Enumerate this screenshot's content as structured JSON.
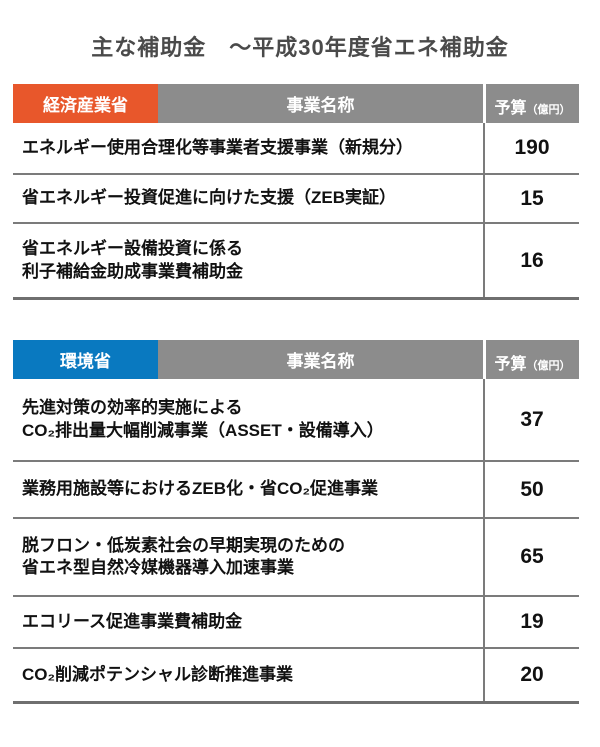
{
  "title": "主な補助金　〜平成30年度省エネ補助金",
  "colors": {
    "meti_badge_orange": "#E8572B",
    "env_badge_blue": "#0979C0",
    "header_gray": "#8C8C8C",
    "separator_gray": "#7B7B7B",
    "title_gray": "#4A4A4A"
  },
  "tables": [
    {
      "ministry": "経済産業省",
      "name_header": "事業名称",
      "budget_header": "予算",
      "budget_unit": "（億円）",
      "rows": [
        {
          "name": "エネルギー使用合理化等事業者支援事業（新規分）",
          "budget": "190"
        },
        {
          "name": "省エネルギー投資促進に向けた支援（ZEB実証）",
          "budget": "15"
        },
        {
          "name": "省エネルギー設備投資に係る\n利子補給金助成事業費補助金",
          "budget": "16"
        }
      ]
    },
    {
      "ministry": "環境省",
      "name_header": "事業名称",
      "budget_header": "予算",
      "budget_unit": "（億円）",
      "rows": [
        {
          "name": "先進対策の効率的実施による\nCO₂排出量大幅削減事業（ASSET・設備導入）",
          "budget": "37"
        },
        {
          "name": "業務用施設等におけるZEB化・省CO₂促進事業",
          "budget": "50"
        },
        {
          "name": "脱フロン・低炭素社会の早期実現のための\n省エネ型自然冷媒機器導入加速事業",
          "budget": "65"
        },
        {
          "name": "エコリース促進事業費補助金",
          "budget": "19"
        },
        {
          "name": "CO₂削減ポテンシャル診断推進事業",
          "budget": "20"
        }
      ]
    }
  ]
}
